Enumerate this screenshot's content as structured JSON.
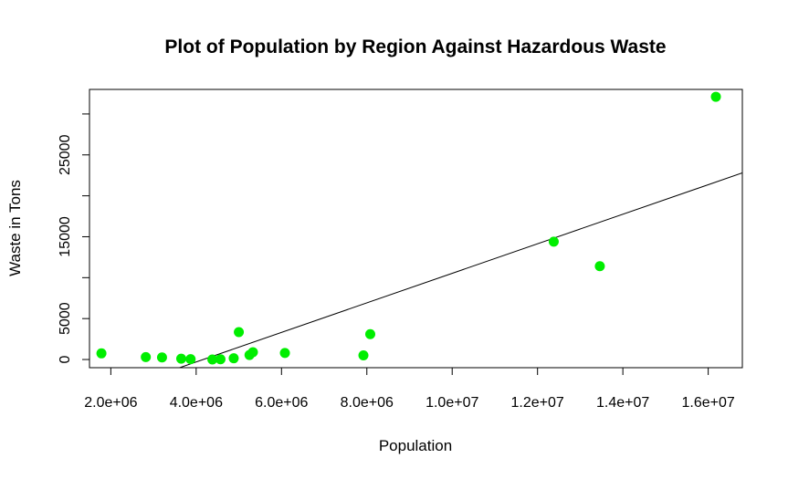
{
  "chart_data": {
    "type": "scatter",
    "title": "Plot of Population by Region Against Hazardous Waste",
    "xlabel": "Population",
    "ylabel": "Waste in Tons",
    "xlim": [
      1500000,
      16800000
    ],
    "ylim": [
      -1000,
      33000
    ],
    "x_ticks": [
      2000000,
      4000000,
      6000000,
      8000000,
      10000000,
      12000000,
      14000000,
      16000000
    ],
    "x_tick_labels": [
      "2.0e+06",
      "4.0e+06",
      "6.0e+06",
      "8.0e+06",
      "1.0e+07",
      "1.2e+07",
      "1.4e+07",
      "1.6e+07"
    ],
    "y_ticks": [
      0,
      5000,
      10000,
      15000,
      20000,
      25000,
      30000
    ],
    "y_tick_labels": [
      "0",
      "5000",
      "",
      "15000",
      "",
      "25000",
      ""
    ],
    "grid": false,
    "point_color": "#00ee00",
    "points": [
      {
        "x": 1780000,
        "y": 750
      },
      {
        "x": 2820000,
        "y": 300
      },
      {
        "x": 3200000,
        "y": 250
      },
      {
        "x": 3650000,
        "y": 100
      },
      {
        "x": 3870000,
        "y": 50
      },
      {
        "x": 4380000,
        "y": 0
      },
      {
        "x": 4570000,
        "y": 30
      },
      {
        "x": 4880000,
        "y": 150
      },
      {
        "x": 5000000,
        "y": 3350
      },
      {
        "x": 5250000,
        "y": 550
      },
      {
        "x": 5330000,
        "y": 900
      },
      {
        "x": 6080000,
        "y": 800
      },
      {
        "x": 7920000,
        "y": 500
      },
      {
        "x": 8080000,
        "y": 3100
      },
      {
        "x": 12380000,
        "y": 14400
      },
      {
        "x": 13460000,
        "y": 11400
      },
      {
        "x": 16180000,
        "y": 32100
      }
    ],
    "fit_line": {
      "x": [
        3500000,
        16800000
      ],
      "y": [
        -1200,
        22800
      ]
    }
  }
}
